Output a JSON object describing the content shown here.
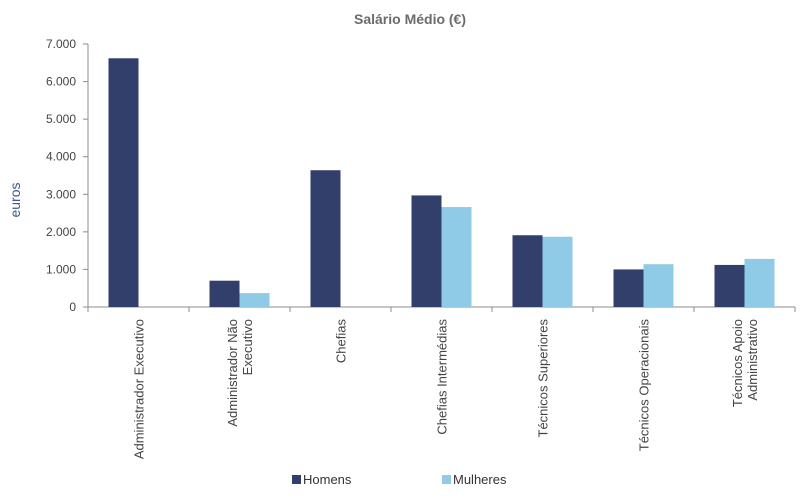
{
  "chart_data": {
    "type": "bar",
    "title": "Salário Médio (€)",
    "xlabel": "",
    "ylabel": "euros",
    "ylim": [
      0,
      7000
    ],
    "yticks": [
      0,
      1000,
      2000,
      3000,
      4000,
      5000,
      6000,
      7000
    ],
    "ytick_labels": [
      "0",
      "1.000",
      "2.000",
      "3.000",
      "4.000",
      "5.000",
      "6.000",
      "7.000"
    ],
    "grid": false,
    "legend_position": "bottom",
    "categories": [
      [
        "Administrador Executivo"
      ],
      [
        "Administrador Não",
        "Executivo"
      ],
      [
        "Chefias"
      ],
      [
        "Chefias Intermédias"
      ],
      [
        "Técnicos Superiores"
      ],
      [
        "Técnicos Operacionais"
      ],
      [
        "Técnicos Apoio",
        "Administrativo"
      ]
    ],
    "series": [
      {
        "name": "Homens",
        "color": "#323f6b",
        "values": [
          6620,
          700,
          3640,
          2970,
          1910,
          1000,
          1120
        ]
      },
      {
        "name": "Mulheres",
        "color": "#8fcbe6",
        "values": [
          null,
          370,
          null,
          2660,
          1870,
          1140,
          1280
        ]
      }
    ],
    "colors": {
      "title": "#6b6b6b",
      "ylabel": "#3d5a8a",
      "axis": "#8c8c8c",
      "tick_text": "#444444"
    }
  }
}
